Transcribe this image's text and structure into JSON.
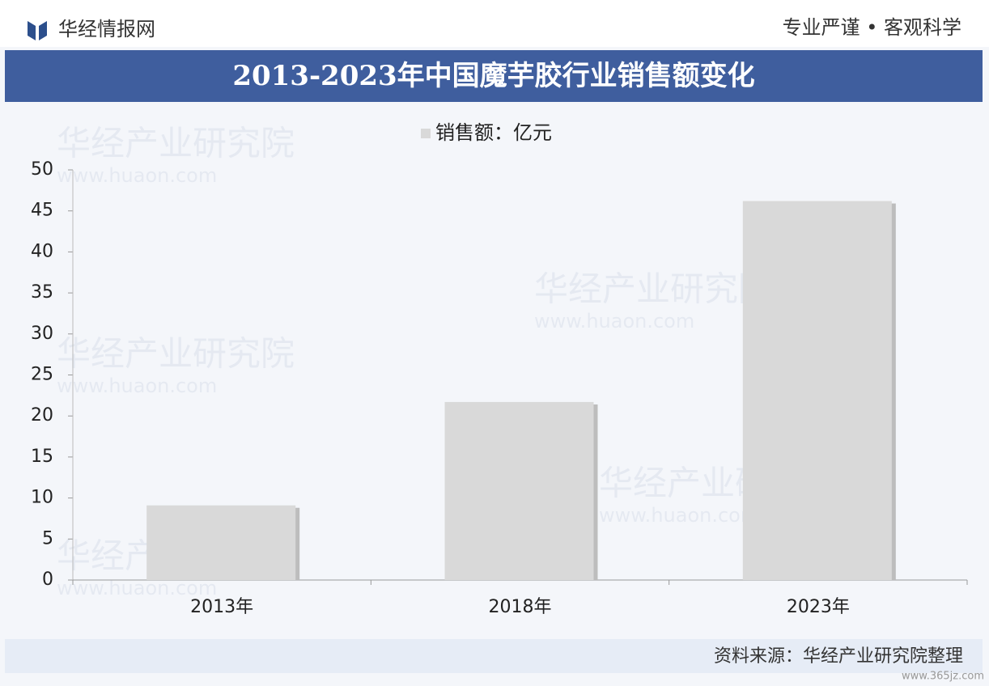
{
  "header": {
    "brand": "华经情报网",
    "slogan": "专业严谨 • 客观科学"
  },
  "chart_data": {
    "type": "bar",
    "title": "2013-2023年中国魔芋胶行业销售额变化",
    "categories": [
      "2013年",
      "2018年",
      "2023年"
    ],
    "series": [
      {
        "name": "销售额：亿元",
        "color": "#d9d9d9",
        "values": [
          9.1,
          21.7,
          46.2
        ]
      }
    ],
    "ylim": [
      0,
      50
    ],
    "yticks": [
      0,
      5,
      10,
      15,
      20,
      25,
      30,
      35,
      40,
      45,
      50
    ],
    "grid": false,
    "legend": "top"
  },
  "watermark": {
    "name": "华经产业研究院",
    "url": "www.huaon.com"
  },
  "footer": {
    "source": "资料来源：华经产业研究院整理",
    "site": "www.365jz.com"
  }
}
